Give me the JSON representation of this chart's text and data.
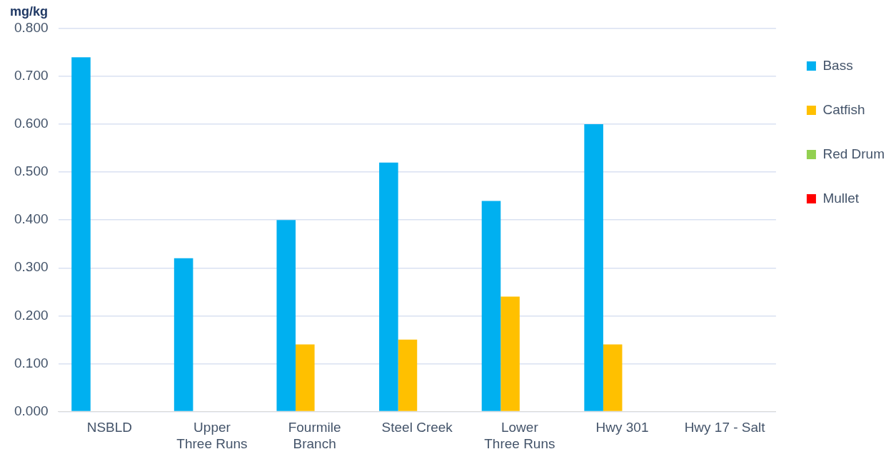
{
  "chart_data": {
    "type": "bar",
    "ylabel": "mg/kg",
    "categories": [
      "NSBLD",
      "Upper Three Runs",
      "Fourmile Branch",
      "Steel Creek",
      "Lower Three Runs",
      "Hwy 301",
      "Hwy 17 - Salt"
    ],
    "series": [
      {
        "name": "Bass",
        "color": "#00b0f0",
        "values": [
          0.74,
          0.32,
          0.4,
          0.52,
          0.44,
          0.6,
          null
        ]
      },
      {
        "name": "Catfish",
        "color": "#ffc000",
        "values": [
          null,
          null,
          0.14,
          0.15,
          0.24,
          0.14,
          null
        ]
      },
      {
        "name": "Red Drum",
        "color": "#92d050",
        "values": [
          null,
          null,
          null,
          null,
          null,
          null,
          null
        ]
      },
      {
        "name": "Mullet",
        "color": "#ff0000",
        "values": [
          null,
          null,
          null,
          null,
          null,
          null,
          null
        ]
      }
    ],
    "ylim": [
      0,
      0.8
    ],
    "yticks": [
      {
        "value": 0,
        "label": "0.000"
      },
      {
        "value": 0.1,
        "label": "0.100"
      },
      {
        "value": 0.2,
        "label": "0.200"
      },
      {
        "value": 0.3,
        "label": "0.300"
      },
      {
        "value": 0.4,
        "label": "0.400"
      },
      {
        "value": 0.5,
        "label": "0.500"
      },
      {
        "value": 0.6,
        "label": "0.600"
      },
      {
        "value": 0.7,
        "label": "0.700"
      },
      {
        "value": 0.8,
        "label": "0.800"
      }
    ],
    "grid": "y",
    "legend": "right"
  }
}
